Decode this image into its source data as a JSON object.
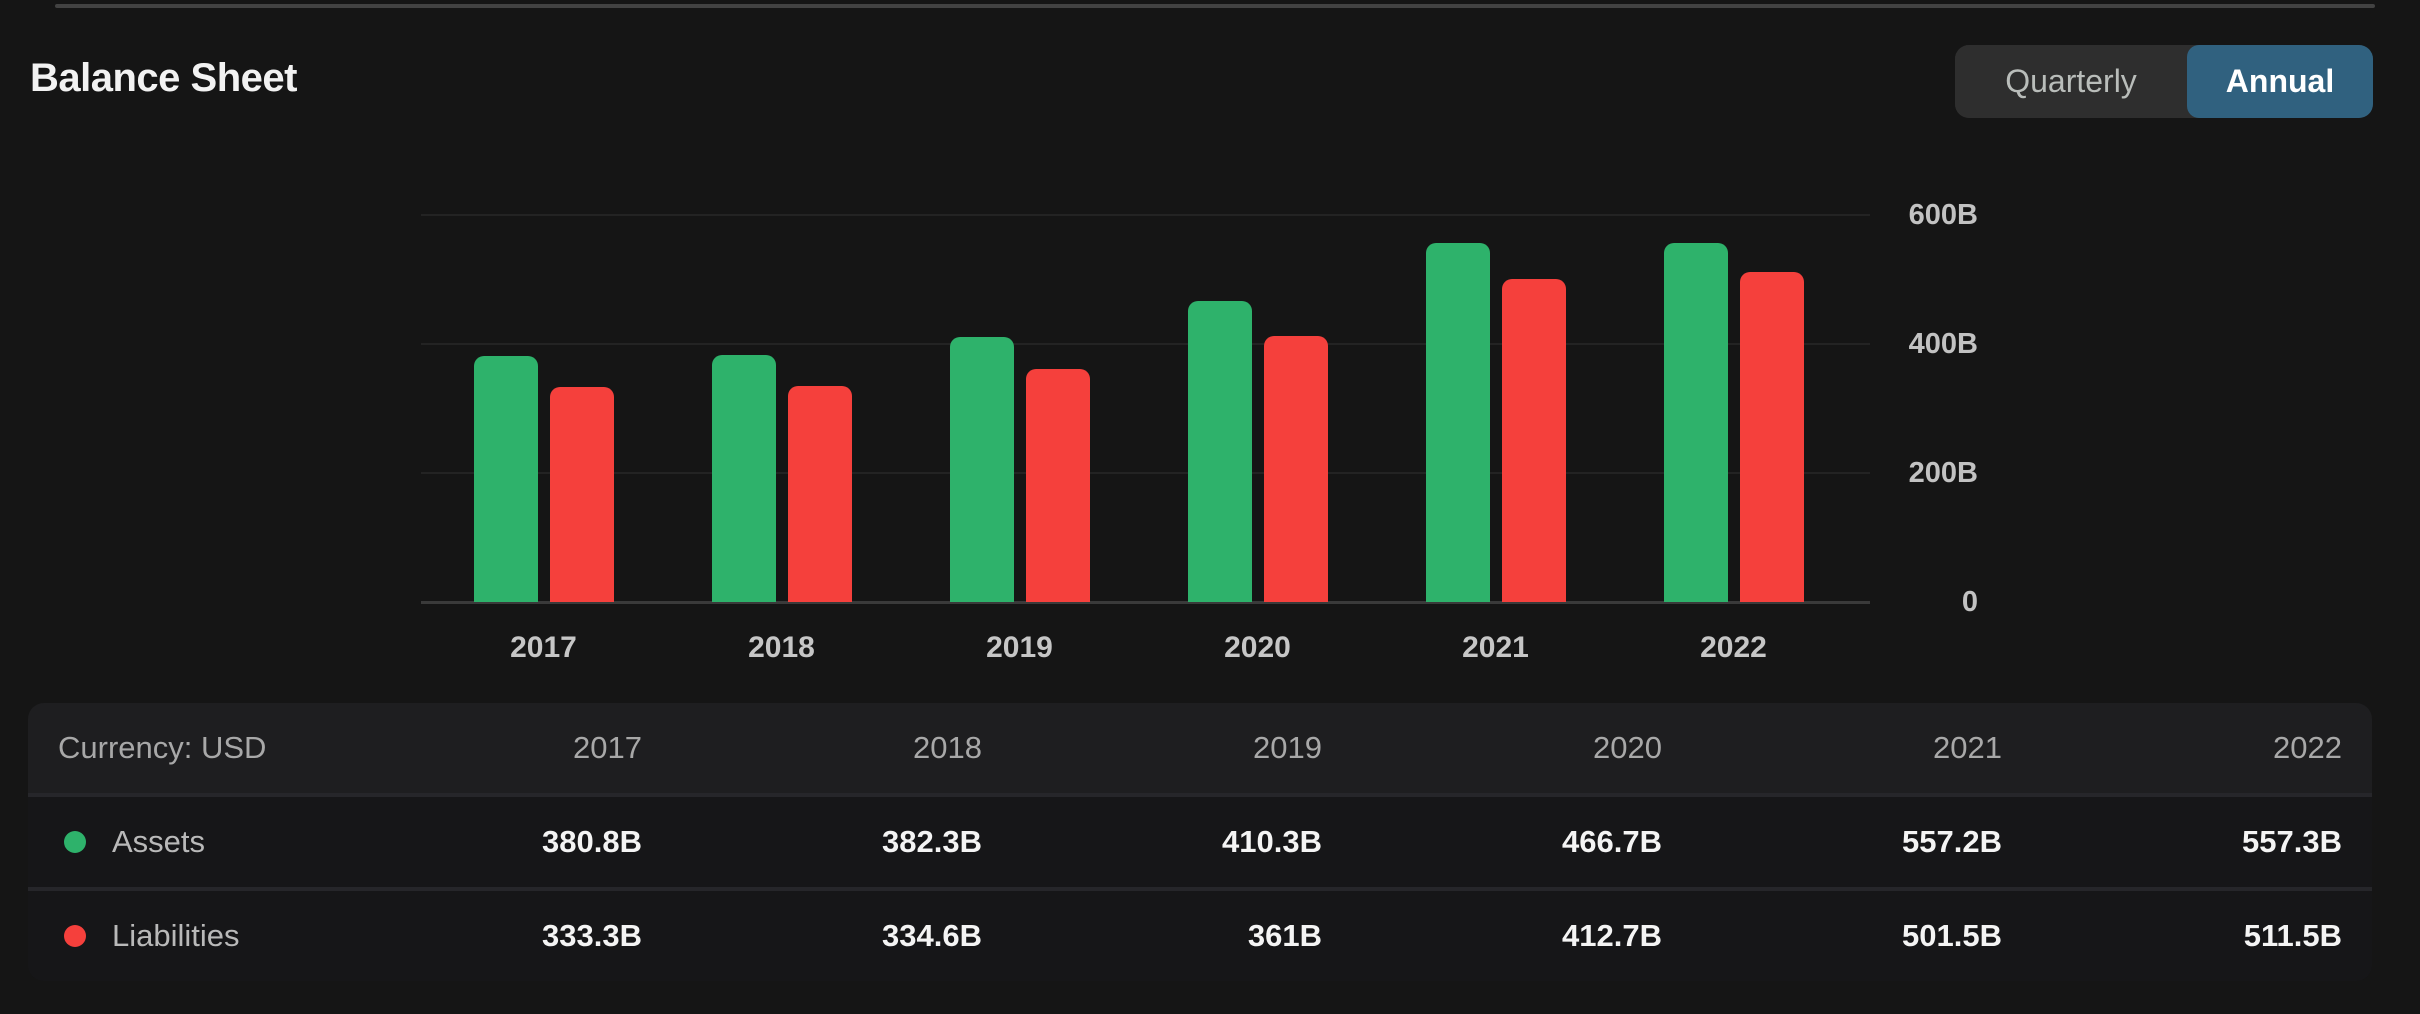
{
  "header": {
    "title": "Balance Sheet",
    "toggle": {
      "options": [
        {
          "label": "Quarterly"
        },
        {
          "label": "Annual"
        }
      ],
      "active_index": 1
    }
  },
  "chart_data": {
    "type": "bar",
    "title": "Balance Sheet",
    "categories": [
      "2017",
      "2018",
      "2019",
      "2020",
      "2021",
      "2022"
    ],
    "series": [
      {
        "name": "Assets",
        "color": "#2eb26b",
        "values": [
          380.8,
          382.3,
          410.3,
          466.7,
          557.2,
          557.3
        ]
      },
      {
        "name": "Liabilities",
        "color": "#f5403c",
        "values": [
          333.3,
          334.6,
          361,
          412.7,
          501.5,
          511.5
        ]
      }
    ],
    "unit": "B",
    "ylim": [
      0,
      600
    ],
    "yticks": [
      {
        "value": 600,
        "label": "600B"
      },
      {
        "value": 400,
        "label": "400B"
      },
      {
        "value": 200,
        "label": "200B"
      },
      {
        "value": 0,
        "label": "0"
      }
    ],
    "grid": "horizontal",
    "legend_position": "table-rows"
  },
  "table": {
    "header": {
      "label": "Currency: USD",
      "columns": [
        "2017",
        "2018",
        "2019",
        "2020",
        "2021",
        "2022"
      ]
    },
    "rows": [
      {
        "name": "Assets",
        "dot_color": "#2eb26b",
        "values": [
          "380.8B",
          "382.3B",
          "410.3B",
          "466.7B",
          "557.2B",
          "557.3B"
        ]
      },
      {
        "name": "Liabilities",
        "dot_color": "#f5403c",
        "values": [
          "333.3B",
          "334.6B",
          "361B",
          "412.7B",
          "501.5B",
          "511.5B"
        ]
      }
    ]
  },
  "colors": {
    "accent_blue": "#30617f",
    "positive_green": "#2eb26b",
    "negative_red": "#f5403c",
    "background": "#151515"
  }
}
